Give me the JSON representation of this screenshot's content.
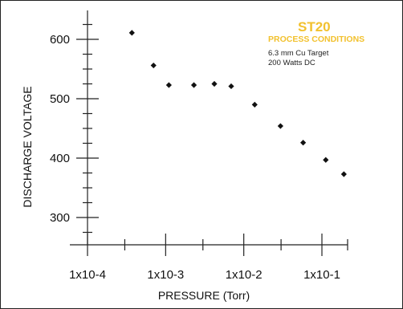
{
  "colors": {
    "accent": "#f2c12e",
    "ink": "#111111",
    "frame": "#222222"
  },
  "legend": {
    "title": "ST20",
    "subtitle": "PROCESS CONDITIONS",
    "line1": "6.3 mm Cu Target",
    "line2": "200 Watts DC"
  },
  "chart_data": {
    "type": "scatter",
    "xlabel": "PRESSURE (Torr)",
    "ylabel": "DISCHARGE VOLTAGE",
    "x_scale": "log",
    "x_ticks": [
      0.0001,
      0.001,
      0.01,
      0.1
    ],
    "x_tick_labels": [
      "1x10-4",
      "1x10-3",
      "1x10-2",
      "1x10-1"
    ],
    "y_ticks": [
      300,
      400,
      500,
      600
    ],
    "y_tick_labels": [
      "300",
      "400",
      "500",
      "600"
    ],
    "ylim": [
      250,
      640
    ],
    "grid": false,
    "marker": "diamond",
    "series": [
      {
        "points": [
          {
            "x": 0.00037,
            "y": 611
          },
          {
            "x": 0.0007,
            "y": 556
          },
          {
            "x": 0.0011,
            "y": 523
          },
          {
            "x": 0.0023,
            "y": 523
          },
          {
            "x": 0.0042,
            "y": 525
          },
          {
            "x": 0.0069,
            "y": 521
          },
          {
            "x": 0.0138,
            "y": 490
          },
          {
            "x": 0.0295,
            "y": 454
          },
          {
            "x": 0.0575,
            "y": 426
          },
          {
            "x": 0.112,
            "y": 397
          },
          {
            "x": 0.191,
            "y": 373
          }
        ]
      }
    ]
  }
}
